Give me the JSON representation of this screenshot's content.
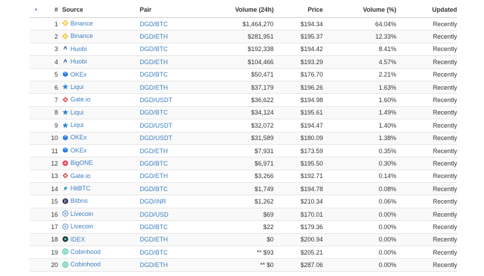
{
  "colors": {
    "link": "#3d7fc1",
    "header_text": "#333333",
    "row_border": "#e6e6e6",
    "stripe": "#f9f9f9",
    "sort_arrow": "#6a7fb8"
  },
  "table": {
    "sort_indicator": "▲",
    "headers": {
      "num": "#",
      "source": "Source",
      "pair": "Pair",
      "volume": "Volume (24h)",
      "price": "Price",
      "volume_pct": "Volume (%)",
      "updated": "Updated"
    },
    "rows": [
      {
        "num": "1",
        "source": "Binance",
        "icon": "binance-icon",
        "pair": "DGD/BTC",
        "volume": "$1,464,270",
        "price": "$194.34",
        "volume_pct": "64.04%",
        "updated": "Recently"
      },
      {
        "num": "2",
        "source": "Binance",
        "icon": "binance-icon",
        "pair": "DGD/ETH",
        "volume": "$281,951",
        "price": "$195.37",
        "volume_pct": "12.33%",
        "updated": "Recently"
      },
      {
        "num": "3",
        "source": "Huobi",
        "icon": "huobi-icon",
        "pair": "DGD/BTC",
        "volume": "$192,338",
        "price": "$194.42",
        "volume_pct": "8.41%",
        "updated": "Recently"
      },
      {
        "num": "4",
        "source": "Huobi",
        "icon": "huobi-icon",
        "pair": "DGD/ETH",
        "volume": "$104,466",
        "price": "$193.29",
        "volume_pct": "4.57%",
        "updated": "Recently"
      },
      {
        "num": "5",
        "source": "OKEx",
        "icon": "okex-icon",
        "pair": "DGD/BTC",
        "volume": "$50,471",
        "price": "$176.70",
        "volume_pct": "2.21%",
        "updated": "Recently"
      },
      {
        "num": "6",
        "source": "Liqui",
        "icon": "liqui-icon",
        "pair": "DGD/ETH",
        "volume": "$37,179",
        "price": "$196.26",
        "volume_pct": "1.63%",
        "updated": "Recently"
      },
      {
        "num": "7",
        "source": "Gate.io",
        "icon": "gateio-icon",
        "pair": "DGD/USDT",
        "volume": "$36,622",
        "price": "$194.98",
        "volume_pct": "1.60%",
        "updated": "Recently"
      },
      {
        "num": "8",
        "source": "Liqui",
        "icon": "liqui-icon",
        "pair": "DGD/BTC",
        "volume": "$34,124",
        "price": "$195.61",
        "volume_pct": "1.49%",
        "updated": "Recently"
      },
      {
        "num": "9",
        "source": "Liqui",
        "icon": "liqui-icon",
        "pair": "DGD/USDT",
        "volume": "$32,072",
        "price": "$194.47",
        "volume_pct": "1.40%",
        "updated": "Recently"
      },
      {
        "num": "10",
        "source": "OKEx",
        "icon": "okex-icon",
        "pair": "DGD/USDT",
        "volume": "$31,589",
        "price": "$180.09",
        "volume_pct": "1.38%",
        "updated": "Recently"
      },
      {
        "num": "11",
        "source": "OKEx",
        "icon": "okex-icon",
        "pair": "DGD/ETH",
        "volume": "$7,931",
        "price": "$173.59",
        "volume_pct": "0.35%",
        "updated": "Recently"
      },
      {
        "num": "12",
        "source": "BigONE",
        "icon": "bigone-icon",
        "pair": "DGD/BTC",
        "volume": "$6,971",
        "price": "$195.50",
        "volume_pct": "0.30%",
        "updated": "Recently"
      },
      {
        "num": "13",
        "source": "Gate.io",
        "icon": "gateio-icon",
        "pair": "DGD/ETH",
        "volume": "$3,266",
        "price": "$192.71",
        "volume_pct": "0.14%",
        "updated": "Recently"
      },
      {
        "num": "14",
        "source": "HitBTC",
        "icon": "hitbtc-icon",
        "pair": "DGD/BTC",
        "volume": "$1,749",
        "price": "$194.78",
        "volume_pct": "0.08%",
        "updated": "Recently"
      },
      {
        "num": "15",
        "source": "Bitbns",
        "icon": "bitbns-icon",
        "pair": "DGD/INR",
        "volume": "$1,262",
        "price": "$210.34",
        "volume_pct": "0.06%",
        "updated": "Recently"
      },
      {
        "num": "16",
        "source": "Livecoin",
        "icon": "livecoin-icon",
        "pair": "DGD/USD",
        "volume": "$69",
        "price": "$170.01",
        "volume_pct": "0.00%",
        "updated": "Recently"
      },
      {
        "num": "17",
        "source": "Livecoin",
        "icon": "livecoin-icon",
        "pair": "DGD/BTC",
        "volume": "$22",
        "price": "$179.36",
        "volume_pct": "0.00%",
        "updated": "Recently"
      },
      {
        "num": "18",
        "source": "IDEX",
        "icon": "idex-icon",
        "pair": "DGD/ETH",
        "volume": "$0",
        "price": "$200.94",
        "volume_pct": "0.00%",
        "updated": "Recently"
      },
      {
        "num": "19",
        "source": "Cobinhood",
        "icon": "cobinhood-icon",
        "pair": "DGD/BTC",
        "volume": "** $93",
        "price": "$205.21",
        "volume_pct": "0.00%",
        "updated": "Recently"
      },
      {
        "num": "20",
        "source": "Cobinhood",
        "icon": "cobinhood-icon",
        "pair": "DGD/ETH",
        "volume": "** $0",
        "price": "$287.06",
        "volume_pct": "0.00%",
        "updated": "Recently"
      }
    ]
  }
}
